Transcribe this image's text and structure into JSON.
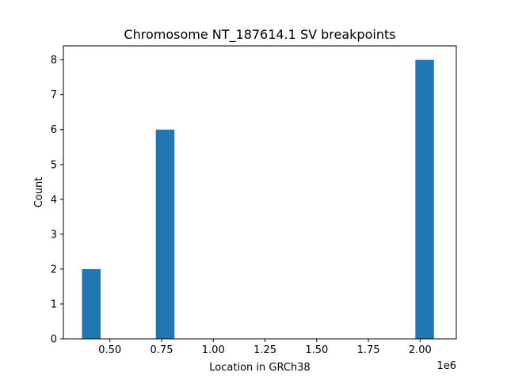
{
  "chart_data": {
    "type": "bar",
    "title": "Chromosome NT_187614.1 SV breakpoints",
    "xlabel": "Location in GRCh38",
    "ylabel": "Count",
    "x_scale_label": "1e6",
    "xlim": [
      0.275,
      2.175
    ],
    "ylim": [
      0,
      8.4
    ],
    "x_ticks": [
      0.5,
      0.75,
      1.0,
      1.25,
      1.5,
      1.75,
      2.0
    ],
    "x_tick_labels": [
      "0.50",
      "0.75",
      "1.00",
      "1.25",
      "1.50",
      "1.75",
      "2.00"
    ],
    "y_ticks": [
      0,
      1,
      2,
      3,
      4,
      5,
      6,
      7,
      8
    ],
    "y_tick_labels": [
      "0",
      "1",
      "2",
      "3",
      "4",
      "5",
      "6",
      "7",
      "8"
    ],
    "bins": [
      {
        "start": 0.365,
        "end": 0.455,
        "count": 2
      },
      {
        "start": 0.545,
        "end": 0.635,
        "count": 0
      },
      {
        "start": 0.722,
        "end": 0.812,
        "count": 6
      },
      {
        "start": 0.902,
        "end": 0.992,
        "count": 0
      },
      {
        "start": 1.082,
        "end": 1.172,
        "count": 0
      },
      {
        "start": 1.262,
        "end": 1.352,
        "count": 0
      },
      {
        "start": 1.442,
        "end": 1.532,
        "count": 0
      },
      {
        "start": 1.62,
        "end": 1.71,
        "count": 0
      },
      {
        "start": 1.8,
        "end": 1.89,
        "count": 0
      },
      {
        "start": 1.977,
        "end": 2.067,
        "count": 8
      }
    ],
    "bar_color": "#1f77b4",
    "grid": false,
    "legend": "none"
  }
}
